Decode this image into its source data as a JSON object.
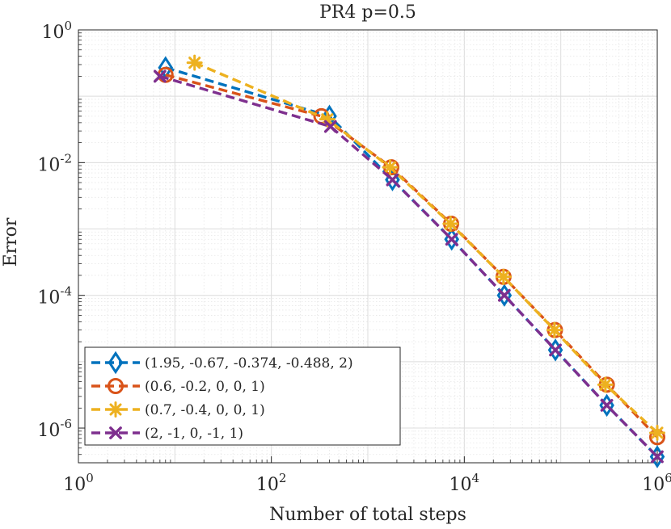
{
  "chart_data": {
    "type": "line",
    "title": "PR4 p=0.5",
    "xlabel": "Number of total steps",
    "ylabel": "Error",
    "xscale": "log",
    "yscale": "log",
    "xlim": [
      1,
      1000000
    ],
    "ylim": [
      3e-07,
      1
    ],
    "x_ticks": [
      {
        "base": "10",
        "exp": "0",
        "value": 1
      },
      {
        "base": "10",
        "exp": "2",
        "value": 100
      },
      {
        "base": "10",
        "exp": "4",
        "value": 10000
      },
      {
        "base": "10",
        "exp": "6",
        "value": 1000000
      }
    ],
    "y_ticks": [
      {
        "base": "10",
        "exp": "0",
        "value": 1
      },
      {
        "base": "10",
        "exp": "-2",
        "value": 0.01
      },
      {
        "base": "10",
        "exp": "-4",
        "value": 0.0001
      },
      {
        "base": "10",
        "exp": "-6",
        "value": 1e-06
      }
    ],
    "grid": true,
    "legend_position": "bottom-left",
    "series": [
      {
        "name": "(1.95, -0.67, -0.374, -0.488, 2)",
        "color": "#0072BD",
        "marker": "diamond",
        "x": [
          8,
          400,
          1800,
          7400,
          26000,
          88000,
          300000,
          1000000
        ],
        "y": [
          0.27,
          0.05,
          0.0055,
          0.0007,
          0.0001,
          1.5e-05,
          2.2e-06,
          3.7e-07
        ]
      },
      {
        "name": "(0.6, -0.2, 0, 0, 1)",
        "color": "#D95319",
        "marker": "circle",
        "x": [
          8,
          330,
          1750,
          7300,
          25500,
          87000,
          300000,
          1000000
        ],
        "y": [
          0.21,
          0.05,
          0.0085,
          0.0012,
          0.00019,
          3e-05,
          4.5e-06,
          7.3e-07
        ]
      },
      {
        "name": "(0.7, -0.4, 0, 0, 1)",
        "color": "#EDB120",
        "marker": "star",
        "x": [
          16,
          380,
          1700,
          7200,
          25500,
          86000,
          290000,
          1000000
        ],
        "y": [
          0.32,
          0.045,
          0.0085,
          0.0012,
          0.00019,
          3e-05,
          4.5e-06,
          8.5e-07
        ]
      },
      {
        "name": "(2, -1, 0, -1, 1)",
        "color": "#7E2F8E",
        "marker": "x",
        "x": [
          7,
          410,
          1800,
          7400,
          26000,
          88000,
          300000,
          1000000
        ],
        "y": [
          0.2,
          0.035,
          0.0055,
          0.0007,
          0.0001,
          1.5e-05,
          2.2e-06,
          3.7e-07
        ]
      }
    ]
  }
}
